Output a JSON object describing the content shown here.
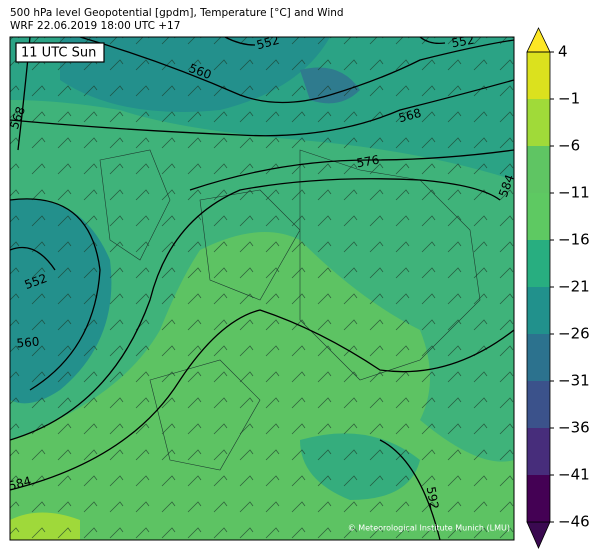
{
  "header": {
    "title": "500 hPa level Geopotential [gpdm], Temperature [°C] and Wind",
    "subtitle": "WRF 22.06.2019 18:00 UTC +17"
  },
  "map": {
    "time_label": "11 UTC Sun",
    "contour_labels": [
      552,
      552,
      560,
      568,
      568,
      576,
      584,
      552,
      560,
      584,
      592
    ],
    "credit": "© Meteorological Institute Munich (LMU)"
  },
  "colorbar": {
    "lim": [
      -46,
      4
    ],
    "ticks": [
      {
        "value": 4,
        "label": "4"
      },
      {
        "value": -1,
        "label": "−1"
      },
      {
        "value": -6,
        "label": "−6"
      },
      {
        "value": -11,
        "label": "−11"
      },
      {
        "value": -16,
        "label": "−16"
      },
      {
        "value": -21,
        "label": "−21"
      },
      {
        "value": -26,
        "label": "−26"
      },
      {
        "value": -31,
        "label": "−31"
      },
      {
        "value": -36,
        "label": "−36"
      },
      {
        "value": -41,
        "label": "−41"
      },
      {
        "value": -46,
        "label": "−46"
      }
    ],
    "colors": [
      "#3a0950",
      "#440154",
      "#472d7b",
      "#3b528b",
      "#2c728e",
      "#21918c",
      "#28ae80",
      "#5ec962",
      "#5fc563",
      "#a0da39",
      "#dbe11e",
      "#fde725"
    ]
  }
}
